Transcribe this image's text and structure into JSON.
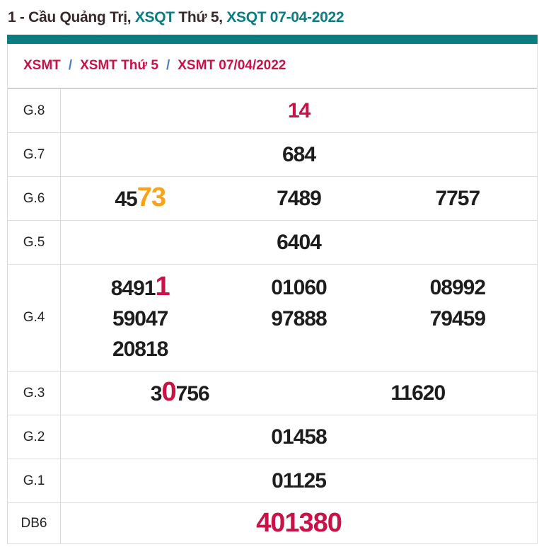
{
  "colors": {
    "teal_accent": "#0a7d80",
    "highlight_red": "#cc1147",
    "highlight_orange": "#f8a31a",
    "breadcrumb_separator_blue": "#4d7ec0",
    "border_gray": "#dcdcdc"
  },
  "header": {
    "title_parts": [
      {
        "text": "1 - Cầu Quảng Trị, "
      },
      {
        "text": "XSQT"
      },
      {
        "text": " Thứ 5, "
      },
      {
        "text": "XSQT 07-04-2022"
      }
    ]
  },
  "breadcrumb": {
    "separator": "/",
    "items": [
      {
        "label": "XSMT"
      },
      {
        "label": "XSMT Thứ 5"
      },
      {
        "label": "XSMT 07/04/2022"
      }
    ]
  },
  "table": {
    "rows": {
      "g8": {
        "label": "G.8",
        "value": "14"
      },
      "g7": {
        "label": "G.7",
        "value": "684"
      },
      "g6": {
        "label": "G.6",
        "v1a": "45",
        "v1b": "73",
        "v2": "7489",
        "v3": "7757"
      },
      "g5": {
        "label": "G.5",
        "value": "6404"
      },
      "g4": {
        "label": "G.4",
        "v1a": "8491",
        "v1b": "1",
        "v2": "01060",
        "v3": "08992",
        "v4": "59047",
        "v5": "97888",
        "v6": "79459",
        "v7": "20818"
      },
      "g3": {
        "label": "G.3",
        "v1a": "3",
        "v1b": "0",
        "v1c": "756",
        "v2": "11620"
      },
      "g2": {
        "label": "G.2",
        "value": "01458"
      },
      "g1": {
        "label": "G.1",
        "value": "01125"
      },
      "db6": {
        "label": "DB6",
        "value": "401380"
      }
    }
  }
}
